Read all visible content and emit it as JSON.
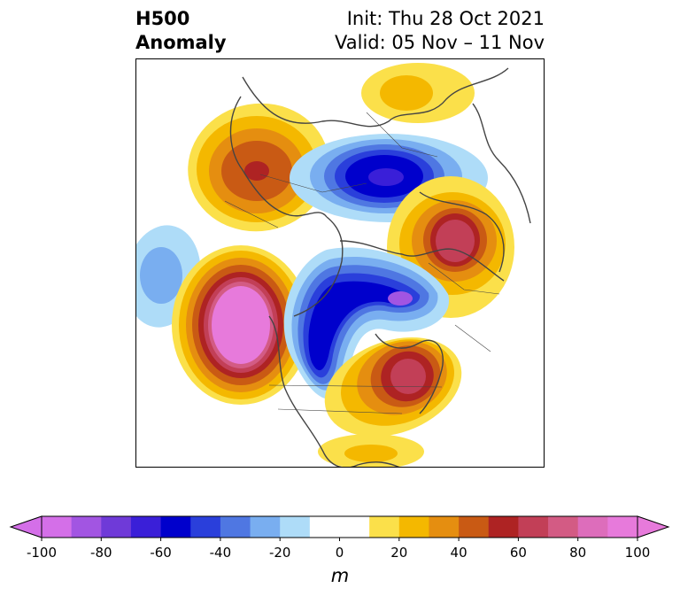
{
  "title": {
    "left_line1": "H500",
    "left_line2": "Anomaly",
    "right_line1": "Init: Thu 28 Oct 2021",
    "right_line2": "Valid: 05 Nov – 11 Nov"
  },
  "map": {
    "projection": "polar stereographic (Northern Hemisphere)",
    "variable": "500 hPa geopotential height anomaly",
    "anomaly_centers": [
      {
        "region": "North Pacific / Gulf of Alaska",
        "sign": "positive",
        "approx_m": 100
      },
      {
        "region": "central North America",
        "sign": "negative",
        "approx_m": -70
      },
      {
        "region": "northern Canada / Arctic Archipelago",
        "sign": "negative",
        "approx_m": -60
      },
      {
        "region": "eastern Canada / Labrador",
        "sign": "positive",
        "approx_m": 80
      },
      {
        "region": "Kara Sea / Siberian Arctic",
        "sign": "negative",
        "approx_m": -70
      },
      {
        "region": "northern Europe / Scandinavia",
        "sign": "positive",
        "approx_m": 70
      },
      {
        "region": "eastern Siberia",
        "sign": "positive",
        "approx_m": 60
      },
      {
        "region": "subtropical North Pacific",
        "sign": "negative",
        "approx_m": -30
      },
      {
        "region": "North Africa / Atlantic subtropics",
        "sign": "positive",
        "approx_m": 20
      },
      {
        "region": "northern Siberia coast",
        "sign": "positive",
        "approx_m": 20
      }
    ]
  },
  "colorbar": {
    "label": "m",
    "levels": [
      -100,
      -90,
      -80,
      -70,
      -60,
      -50,
      -40,
      -30,
      -20,
      -10,
      10,
      20,
      30,
      40,
      50,
      60,
      70,
      80,
      90,
      100
    ],
    "tick_labels": [
      "-100",
      "-80",
      "-60",
      "-40",
      "-20",
      "0",
      "20",
      "40",
      "60",
      "80",
      "100"
    ],
    "extend": "both",
    "colors": [
      "#d46fe8",
      "#a255e2",
      "#6f3ad8",
      "#3a1fd8",
      "#0000cc",
      "#2a3fdb",
      "#4f77e2",
      "#79aef0",
      "#aedcf8",
      "#ffffff",
      "#ffffff",
      "#fbe04a",
      "#f4b800",
      "#e58e10",
      "#c95a14",
      "#ae2323",
      "#c23f57",
      "#d35b84",
      "#dd6dbb",
      "#e77adb"
    ],
    "lower_extend_color": "#d46fe8",
    "upper_extend_color": "#e77adb"
  }
}
